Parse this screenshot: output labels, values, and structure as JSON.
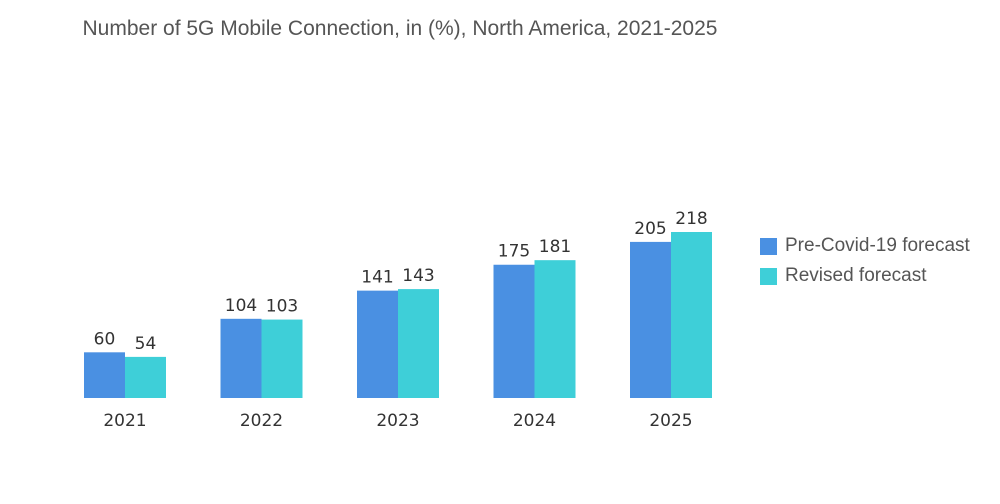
{
  "chart_data": {
    "type": "bar",
    "title": "Number of 5G Mobile Connection, in (%), North America, 2021-2025",
    "categories": [
      "2021",
      "2022",
      "2023",
      "2024",
      "2025"
    ],
    "series": [
      {
        "name": "Pre-Covid-19 forecast",
        "color": "#4a90e2",
        "values": [
          60,
          104,
          141,
          175,
          205
        ]
      },
      {
        "name": "Revised forecast",
        "color": "#3ecfd8",
        "values": [
          54,
          103,
          143,
          181,
          218
        ]
      }
    ],
    "xlabel": "",
    "ylabel": "",
    "ylim": [
      0,
      218
    ],
    "grid": false,
    "legend_position": "right"
  }
}
